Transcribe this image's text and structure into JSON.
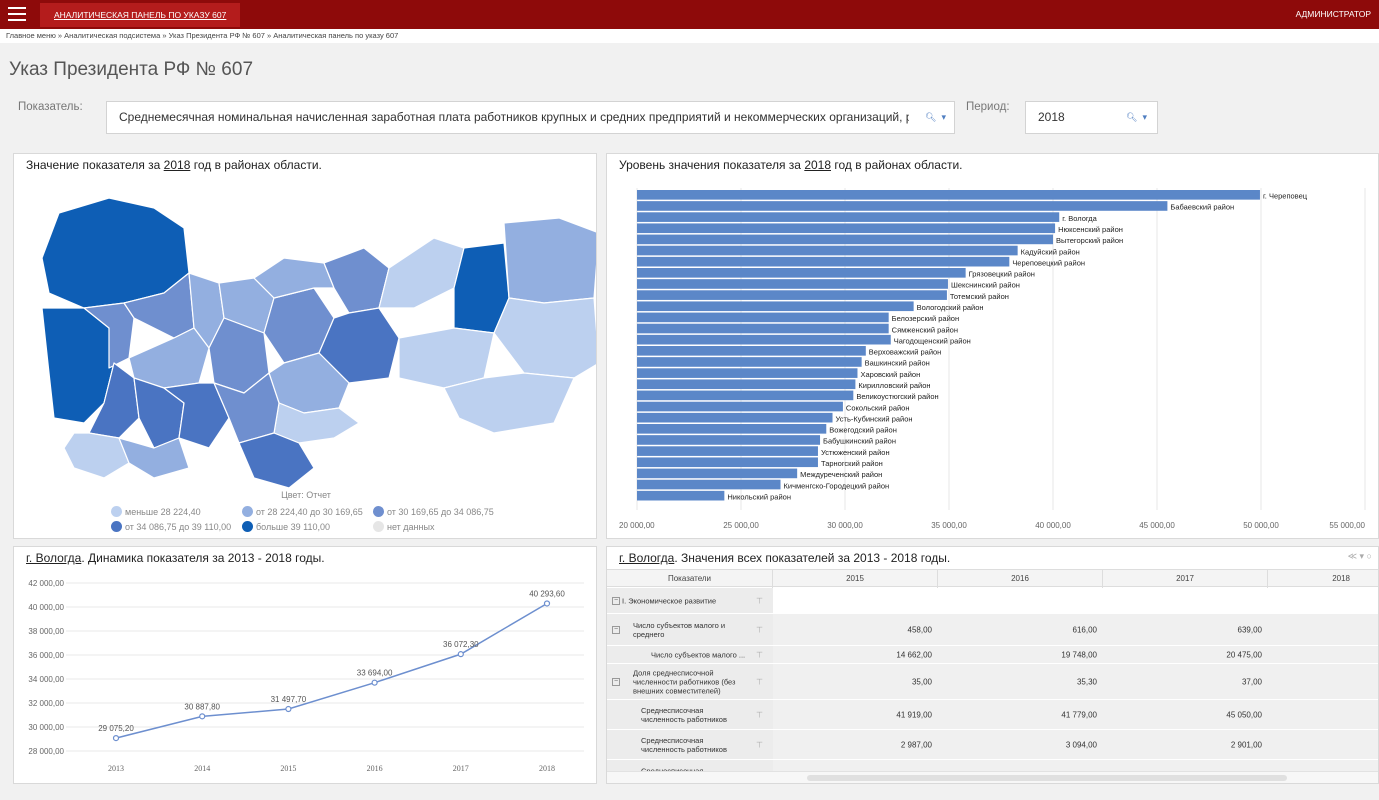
{
  "topbar": {
    "app_tab": "АНАЛИТИЧЕСКАЯ ПАНЕЛЬ ПО УКАЗУ 607",
    "user": "АДМИНИСТРАТОР",
    "color": "#8e0a0a"
  },
  "breadcrumb": "Главное меню » Аналитическая подсистема » Указ Президента РФ № 607 » Аналитическая панель по указу 607",
  "page_title": "Указ Президента РФ № 607",
  "filters": {
    "indicator_label": "Показатель:",
    "indicator_value": "Среднемесячная номинальная начисленная заработная плата работников крупных и средних предприятий и некоммерческих организаций, ру...",
    "period_label": "Период:",
    "period_value": "2018",
    "search_icon": "search-icon",
    "dropdown_icon": "chevron-down-icon"
  },
  "map_panel": {
    "title_prefix": "Значение показателя за ",
    "title_year": "2018",
    "title_suffix": " год в районах области.",
    "legend_title": "Цвет: Отчет",
    "legend": [
      {
        "label": "меньше 28 224,40",
        "color": "#bcd0ef"
      },
      {
        "label": "от 28 224,40 до 30 169,65",
        "color": "#93afe0"
      },
      {
        "label": "от 30 169,65 до 34 086,75",
        "color": "#6f8fcf"
      },
      {
        "label": "от 34 086,75 до 39 110,00",
        "color": "#4a74c2"
      },
      {
        "label": "больше 39 110,00",
        "color": "#0e5eb5"
      },
      {
        "label": "нет данных",
        "color": "#e6e6e6"
      }
    ]
  },
  "chart_data": [
    {
      "type": "bar",
      "orientation": "horizontal",
      "title": "Уровень значения показателя за 2018 год в районах области.",
      "xlim": [
        20000,
        55000
      ],
      "xticks": [
        "20 000,00",
        "25 000,00",
        "30 000,00",
        "35 000,00",
        "40 000,00",
        "45 000,00",
        "50 000,00",
        "55 000,00"
      ],
      "color": "#5b87c8",
      "categories": [
        "г. Череповец",
        "Бабаевский район",
        "г. Вологда",
        "Нюксенский район",
        "Вытегорский район",
        "Кадуйский район",
        "Череповецкий район",
        "Грязовецкий район",
        "Шекснинский район",
        "Тотемский район",
        "Вологодский район",
        "Белозерский район",
        "Сямженский район",
        "Чагодощенский район",
        "Верховажский район",
        "Вашкинский район",
        "Харовский район",
        "Кирилловский район",
        "Великоустюгский район",
        "Сокольский район",
        "Усть-Кубинский район",
        "Вожегодский район",
        "Бабушкинский район",
        "Устюженский район",
        "Тарногский район",
        "Междуреченский район",
        "Кичменгско-Городецкий район",
        "Никольский район"
      ],
      "values": [
        49950,
        45500,
        40300,
        40100,
        40000,
        38300,
        37900,
        35800,
        34950,
        34900,
        33300,
        32100,
        32100,
        32200,
        31000,
        30800,
        30600,
        30500,
        30400,
        29900,
        29400,
        29100,
        28800,
        28700,
        28700,
        27700,
        26900,
        24200
      ]
    },
    {
      "type": "line",
      "title": "г. Вологда. Динамика показателя за 2013 - 2018 годы.",
      "categories": [
        "2013",
        "2014",
        "2015",
        "2016",
        "2017",
        "2018"
      ],
      "values": [
        29075.2,
        30887.8,
        31497.7,
        33694.0,
        36072.3,
        40293.6
      ],
      "labels": [
        "29 075,20",
        "30 887,80",
        "31 497,70",
        "33 694,00",
        "36 072,30",
        "40 293,60"
      ],
      "ylim": [
        28000,
        42000
      ],
      "yticks": [
        "28 000,00",
        "30 000,00",
        "32 000,00",
        "34 000,00",
        "36 000,00",
        "38 000,00",
        "40 000,00",
        "42 000,00"
      ],
      "color": "#6d8fcf"
    }
  ],
  "line_panel": {
    "title_city": "г. Вологда",
    "title_rest": ". Динамика показателя за 2013 - 2018 годы."
  },
  "bar_panel": {
    "title_prefix": "Уровень значения показателя за ",
    "title_year": "2018",
    "title_suffix": " год в районах области."
  },
  "table_panel": {
    "title_city": "г. Вологда",
    "title_rest": ". Значения всех показателей за 2013 - 2018 годы.",
    "tools": "≪ ▾ ○",
    "header": [
      "Показатели",
      "2015",
      "2016",
      "2017",
      "2018"
    ],
    "rows": [
      {
        "name": "I. Экономическое развитие",
        "toggle": "−",
        "values": [
          "",
          "",
          ""
        ]
      },
      {
        "name": "Число субъектов малого и среднего",
        "toggle": "−",
        "values": [
          "458,00",
          "616,00",
          "639,00"
        ]
      },
      {
        "name": "Число субъектов малого ...",
        "toggle": "",
        "values": [
          "14 662,00",
          "19 748,00",
          "20 475,00"
        ]
      },
      {
        "name": "Доля среднесписочной численности работников (без внешних совместителей)",
        "toggle": "−",
        "values": [
          "35,00",
          "35,30",
          "37,00"
        ]
      },
      {
        "name": "Среднесписочная численность работников",
        "toggle": "",
        "values": [
          "41 919,00",
          "41 779,00",
          "45 050,00"
        ]
      },
      {
        "name": "Среднесписочная численность работников",
        "toggle": "",
        "values": [
          "2 987,00",
          "3 094,00",
          "2 901,00"
        ]
      },
      {
        "name": "Среднесписочная",
        "toggle": "",
        "values": [
          "",
          "",
          ""
        ]
      }
    ]
  }
}
